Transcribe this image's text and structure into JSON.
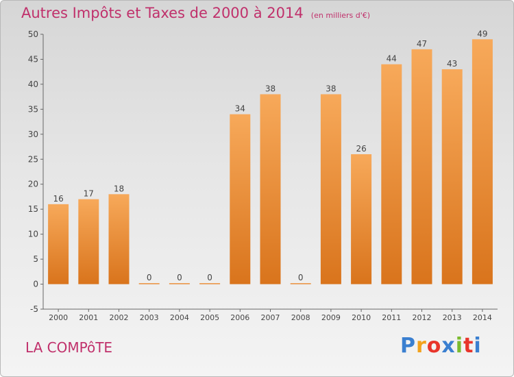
{
  "header": {
    "title": "Autres Impôts et Taxes de 2000 à 2014",
    "unit": "(en milliers d'€)"
  },
  "footer": {
    "place": "LA COMPôTE",
    "logo_letters": [
      "P",
      "r",
      "o",
      "x",
      "i",
      "t",
      "i"
    ],
    "logo_colors": [
      "#3a7fd0",
      "#f2a21c",
      "#e8352b",
      "#3a7fd0",
      "#7bbb2f",
      "#e8352b",
      "#3a7fd0"
    ]
  },
  "colors": {
    "title": "#c0306b",
    "bar_light": "#f7a95a",
    "bar_dark": "#d9741c"
  },
  "chart_data": {
    "type": "bar",
    "categories": [
      "2000",
      "2001",
      "2002",
      "2003",
      "2004",
      "2005",
      "2006",
      "2007",
      "2008",
      "2009",
      "2010",
      "2011",
      "2012",
      "2013",
      "2014"
    ],
    "values": [
      16,
      17,
      18,
      0,
      0,
      0,
      34,
      38,
      0,
      38,
      26,
      44,
      47,
      43,
      49
    ],
    "data_labels": [
      "16",
      "17",
      "18",
      "0",
      "0",
      "0",
      "34",
      "38",
      "0",
      "38",
      "26",
      "44",
      "47",
      "43",
      "49"
    ],
    "y_ticks": [
      -5,
      0,
      5,
      10,
      15,
      20,
      25,
      30,
      35,
      40,
      45,
      50
    ],
    "ylim": [
      -5,
      50
    ],
    "grid": false,
    "legend": "none"
  }
}
